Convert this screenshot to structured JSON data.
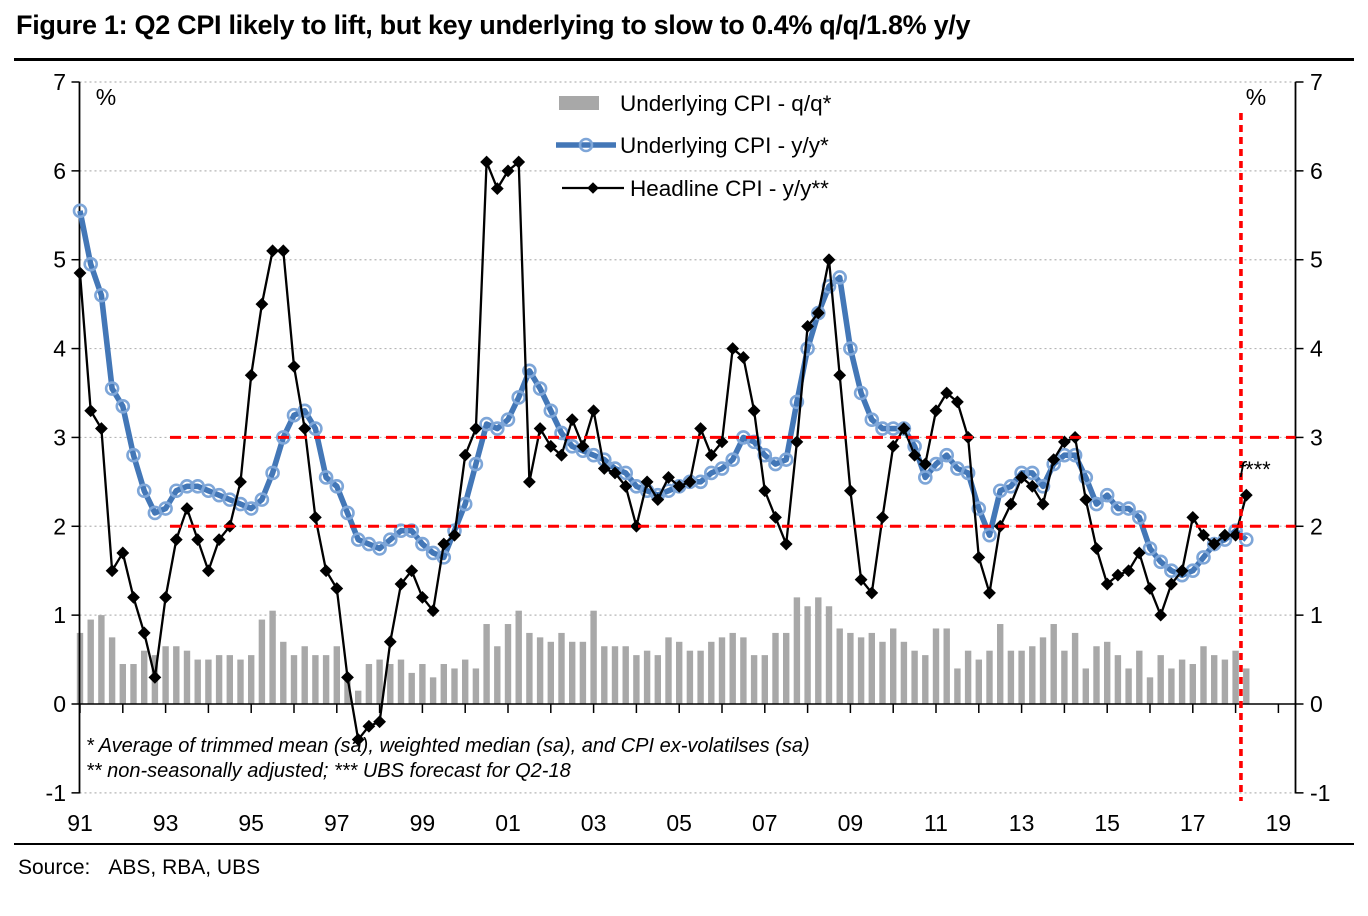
{
  "title": "Figure 1: Q2 CPI likely to lift, but key underlying to slow to 0.4% q/q/1.8% y/y",
  "percent_symbol": "%",
  "source": {
    "label": "Source:",
    "value": "ABS, RBA, UBS"
  },
  "footnotes": [
    "* Average of trimmed mean (sa), weighted median (sa), and CPI ex-volatilses (sa)",
    "** non-seasonally adjusted; *** UBS forecast for Q2-18"
  ],
  "annotation": {
    "text_italic": "f",
    "text_rest": "***"
  },
  "legend": [
    {
      "label": "Underlying CPI - q/q*",
      "type": "bar"
    },
    {
      "label": "Underlying CPI - y/y*",
      "type": "line-circle"
    },
    {
      "label": "Headline CPI - y/y**",
      "type": "line-diamond"
    }
  ],
  "colors": {
    "bar": "#a8a8a8",
    "underlying_line": "#4377b7",
    "underlying_ring": "#7ea6d8",
    "headline_line": "#000000",
    "target_band": "#ff0000",
    "gridline": "#b5b5b5",
    "axis": "#000000"
  },
  "chart_data": {
    "type": "combo",
    "frequency": "quarterly",
    "x_start": "1991Q1",
    "x_end": "2018Q2",
    "last_point_is_forecast": true,
    "forecast_note": "UBS forecast for Q2-18",
    "ylim": [
      -1,
      7
    ],
    "y_ticks": [
      -1,
      0,
      1,
      2,
      3,
      4,
      5,
      6,
      7
    ],
    "y_axis_unit": "%",
    "x_tick_years": [
      1991,
      1993,
      1995,
      1997,
      1999,
      2001,
      2003,
      2005,
      2007,
      2009,
      2011,
      2013,
      2015,
      2017,
      2019
    ],
    "x_tick_labels": [
      "91",
      "93",
      "95",
      "97",
      "99",
      "01",
      "03",
      "05",
      "07",
      "09",
      "11",
      "13",
      "15",
      "17",
      "19"
    ],
    "target_band_values": [
      2,
      3
    ],
    "forecast_divider_after": "2018Q1",
    "grid": "dotted-horizontal",
    "legend_position": "top-center",
    "series": [
      {
        "name": "Underlying CPI - q/q*",
        "type": "bar",
        "values": [
          0.8,
          0.95,
          1.0,
          0.75,
          0.45,
          0.45,
          0.6,
          0.55,
          0.65,
          0.65,
          0.6,
          0.5,
          0.5,
          0.55,
          0.55,
          0.5,
          0.55,
          0.95,
          1.05,
          0.7,
          0.55,
          0.65,
          0.55,
          0.55,
          0.65,
          0.3,
          0.15,
          0.45,
          0.5,
          0.45,
          0.5,
          0.35,
          0.45,
          0.3,
          0.45,
          0.4,
          0.5,
          0.4,
          0.9,
          0.65,
          0.9,
          1.05,
          0.8,
          0.75,
          0.7,
          0.8,
          0.7,
          0.7,
          1.05,
          0.65,
          0.65,
          0.65,
          0.55,
          0.6,
          0.55,
          0.75,
          0.7,
          0.6,
          0.6,
          0.7,
          0.75,
          0.8,
          0.75,
          0.55,
          0.55,
          0.8,
          0.8,
          1.2,
          1.1,
          1.2,
          1.1,
          0.85,
          0.8,
          0.75,
          0.8,
          0.7,
          0.85,
          0.7,
          0.6,
          0.55,
          0.85,
          0.85,
          0.4,
          0.6,
          0.5,
          0.6,
          0.9,
          0.6,
          0.6,
          0.65,
          0.75,
          0.9,
          0.6,
          0.8,
          0.4,
          0.65,
          0.7,
          0.55,
          0.4,
          0.6,
          0.3,
          0.55,
          0.4,
          0.5,
          0.45,
          0.65,
          0.55,
          0.5,
          0.6,
          0.4
        ]
      },
      {
        "name": "Underlying CPI - y/y*",
        "type": "line",
        "marker": "circle",
        "values": [
          5.55,
          4.95,
          4.6,
          3.55,
          3.35,
          2.8,
          2.4,
          2.15,
          2.2,
          2.4,
          2.45,
          2.45,
          2.4,
          2.35,
          2.3,
          2.25,
          2.2,
          2.3,
          2.6,
          3.0,
          3.25,
          3.3,
          3.1,
          2.55,
          2.45,
          2.15,
          1.85,
          1.8,
          1.75,
          1.85,
          1.95,
          1.95,
          1.8,
          1.7,
          1.65,
          1.95,
          2.25,
          2.7,
          3.15,
          3.1,
          3.2,
          3.45,
          3.75,
          3.55,
          3.3,
          3.05,
          2.9,
          2.85,
          2.8,
          2.75,
          2.65,
          2.6,
          2.45,
          2.4,
          2.35,
          2.4,
          2.45,
          2.5,
          2.5,
          2.6,
          2.65,
          2.75,
          3.0,
          2.95,
          2.8,
          2.7,
          2.75,
          3.4,
          4.0,
          4.4,
          4.7,
          4.8,
          4.0,
          3.5,
          3.2,
          3.1,
          3.1,
          3.1,
          2.9,
          2.55,
          2.7,
          2.8,
          2.65,
          2.6,
          2.2,
          1.9,
          2.4,
          2.45,
          2.6,
          2.6,
          2.45,
          2.7,
          2.8,
          2.8,
          2.55,
          2.25,
          2.35,
          2.2,
          2.2,
          2.1,
          1.75,
          1.6,
          1.5,
          1.45,
          1.5,
          1.65,
          1.8,
          1.85,
          1.95,
          1.85
        ]
      },
      {
        "name": "Headline CPI - y/y**",
        "type": "line",
        "marker": "diamond",
        "values": [
          4.85,
          3.3,
          3.1,
          1.5,
          1.7,
          1.2,
          0.8,
          0.3,
          1.2,
          1.85,
          2.2,
          1.85,
          1.5,
          1.85,
          2.0,
          2.5,
          3.7,
          4.5,
          5.1,
          5.1,
          3.8,
          3.1,
          2.1,
          1.5,
          1.3,
          0.3,
          -0.4,
          -0.25,
          -0.2,
          0.7,
          1.35,
          1.5,
          1.2,
          1.05,
          1.8,
          1.9,
          2.8,
          3.1,
          6.1,
          5.8,
          6.0,
          6.1,
          2.5,
          3.1,
          2.9,
          2.8,
          3.2,
          2.9,
          3.3,
          2.65,
          2.6,
          2.45,
          2.0,
          2.5,
          2.3,
          2.55,
          2.45,
          2.5,
          3.1,
          2.8,
          2.95,
          4.0,
          3.9,
          3.3,
          2.4,
          2.1,
          1.8,
          2.95,
          4.25,
          4.4,
          5.0,
          3.7,
          2.4,
          1.4,
          1.25,
          2.1,
          2.9,
          3.1,
          2.8,
          2.7,
          3.3,
          3.5,
          3.4,
          3.0,
          1.65,
          1.25,
          2.0,
          2.25,
          2.55,
          2.45,
          2.25,
          2.75,
          2.95,
          3.0,
          2.3,
          1.75,
          1.35,
          1.45,
          1.5,
          1.7,
          1.3,
          1.0,
          1.35,
          1.5,
          2.1,
          1.9,
          1.8,
          1.9,
          1.9,
          2.35
        ]
      }
    ]
  }
}
